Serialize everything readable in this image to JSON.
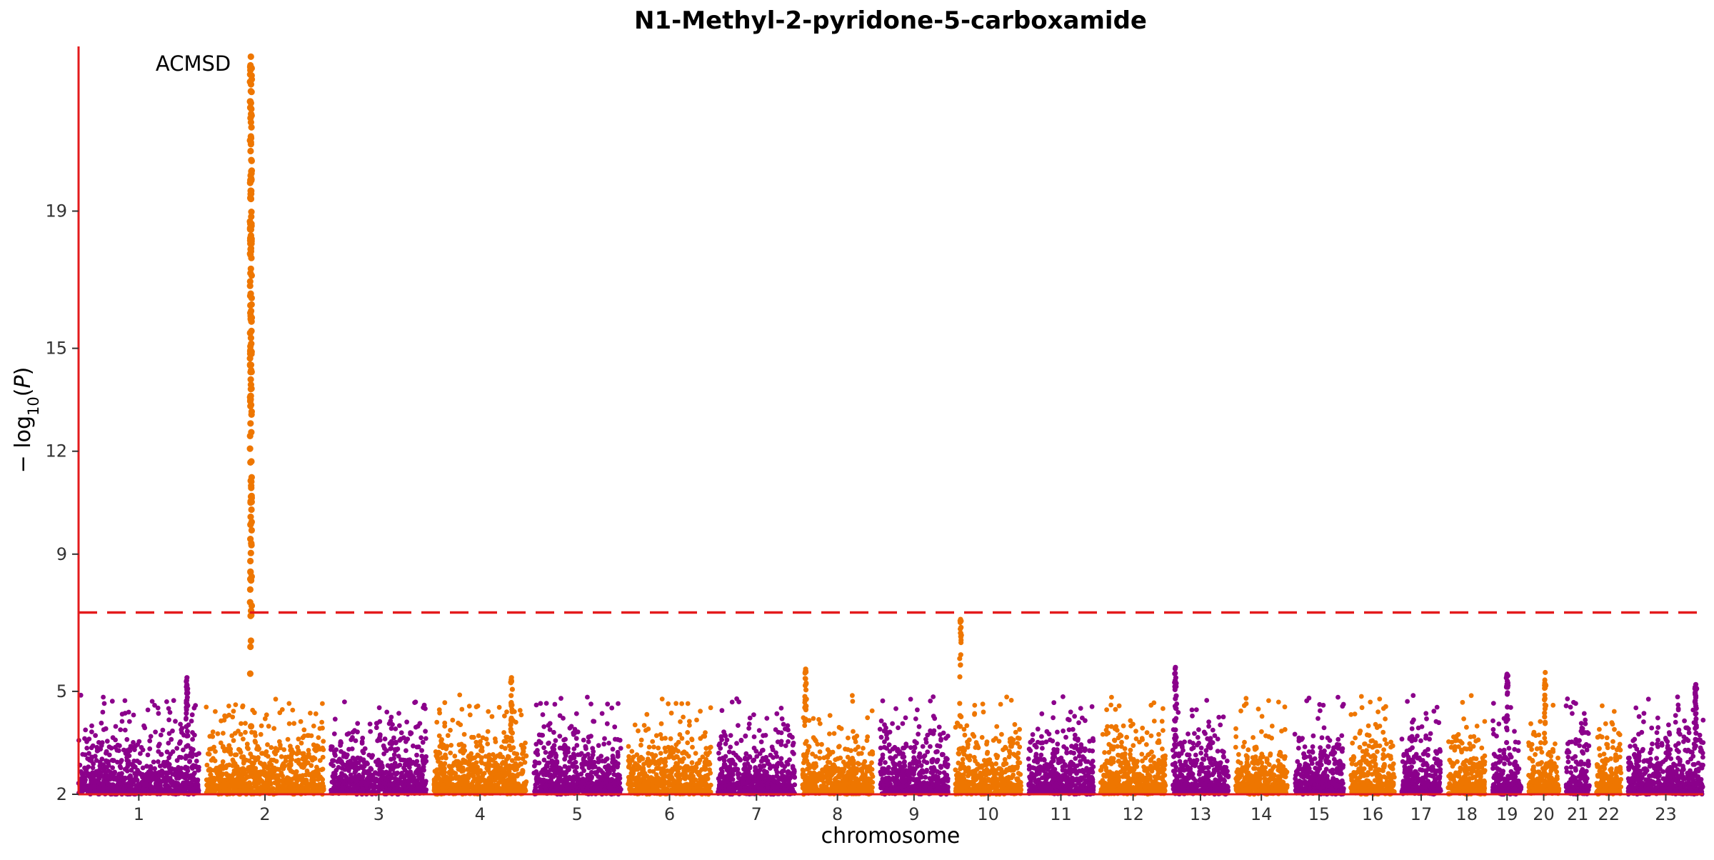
{
  "chart_data": {
    "type": "scatter",
    "subtype": "manhattan",
    "title": "N1-Methyl-2-pyridone-5-carboxamide",
    "xlabel": "chromosome",
    "ylabel": "− log10(P)",
    "ylabel_parts": [
      "− log",
      "10",
      "(",
      "P",
      ")"
    ],
    "ylim": [
      2,
      23.8
    ],
    "yticks": [
      2,
      5,
      9,
      12,
      15,
      19
    ],
    "grid": false,
    "legend": "none",
    "colors": {
      "odd": "#8b008b",
      "even": "#ee7600",
      "axis": "#e31a1c",
      "threshold": "#e31a1c"
    },
    "threshold": 7.3,
    "chromosomes": [
      {
        "label": "1",
        "size": 249
      },
      {
        "label": "2",
        "size": 243
      },
      {
        "label": "3",
        "size": 198
      },
      {
        "label": "4",
        "size": 191
      },
      {
        "label": "5",
        "size": 181
      },
      {
        "label": "6",
        "size": 171
      },
      {
        "label": "7",
        "size": 159
      },
      {
        "label": "8",
        "size": 146
      },
      {
        "label": "9",
        "size": 141
      },
      {
        "label": "10",
        "size": 136
      },
      {
        "label": "11",
        "size": 135
      },
      {
        "label": "12",
        "size": 134
      },
      {
        "label": "13",
        "size": 115
      },
      {
        "label": "14",
        "size": 107
      },
      {
        "label": "15",
        "size": 102
      },
      {
        "label": "16",
        "size": 90
      },
      {
        "label": "17",
        "size": 81
      },
      {
        "label": "18",
        "size": 78
      },
      {
        "label": "19",
        "size": 59
      },
      {
        "label": "20",
        "size": 63
      },
      {
        "label": "21",
        "size": 48
      },
      {
        "label": "22",
        "size": 51
      },
      {
        "label": "23",
        "size": 155
      }
    ],
    "peaks": [
      {
        "chromosome": "2",
        "position": 0.38,
        "max": 23.5,
        "label": "ACMSD"
      },
      {
        "chromosome": "10",
        "position": 0.08,
        "max": 7.1
      },
      {
        "chromosome": "4",
        "position": 0.84,
        "max": 5.4
      },
      {
        "chromosome": "20",
        "position": 0.55,
        "max": 5.55
      },
      {
        "chromosome": "8",
        "position": 0.05,
        "max": 5.65
      },
      {
        "chromosome": "13",
        "position": 0.05,
        "max": 5.7
      },
      {
        "chromosome": "19",
        "position": 0.5,
        "max": 5.5
      },
      {
        "chromosome": "23",
        "position": 0.9,
        "max": 5.2
      },
      {
        "chromosome": "1",
        "position": 0.9,
        "max": 5.4
      }
    ],
    "annotations": [
      {
        "text": "ACMSD",
        "chromosome": "2",
        "y": 23.3
      }
    ]
  }
}
